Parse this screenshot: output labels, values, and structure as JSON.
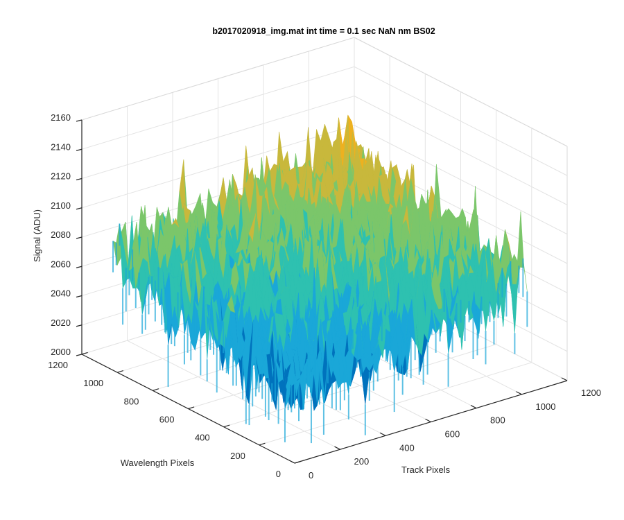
{
  "chart_data": {
    "type": "surface",
    "title": "b2017020918_img.mat int time = 0.1 sec  NaN nm BS02",
    "xlabel": "Track Pixels",
    "ylabel": "Wavelength Pixels",
    "zlabel": "Signal (ADU)",
    "xlim": [
      0,
      1200
    ],
    "ylim": [
      0,
      1200
    ],
    "zlim": [
      2000,
      2160
    ],
    "x_ticks": [
      "0",
      "200",
      "400",
      "600",
      "800",
      "1000",
      "1200"
    ],
    "y_ticks": [
      "0",
      "200",
      "400",
      "600",
      "800",
      "1000",
      "1200"
    ],
    "z_ticks": [
      "2000",
      "2020",
      "2040",
      "2060",
      "2080",
      "2100",
      "2120",
      "2140",
      "2160"
    ],
    "data_extent": {
      "x": [
        0,
        1024
      ],
      "y": [
        0,
        1024
      ]
    },
    "surface_level": {
      "description": "noisy signal level at grid corners (approx.)",
      "corner_x0_y0": 2045,
      "corner_x1024_y0": 2075,
      "corner_x0_y1024": 2075,
      "corner_x1024_y1024": 2105,
      "noise_amplitude": 20
    },
    "colormap": [
      "#0072bd",
      "#1aa7d8",
      "#2ec1b0",
      "#7bc66a",
      "#c8b83c",
      "#edb120"
    ],
    "grid": true,
    "box": true
  }
}
